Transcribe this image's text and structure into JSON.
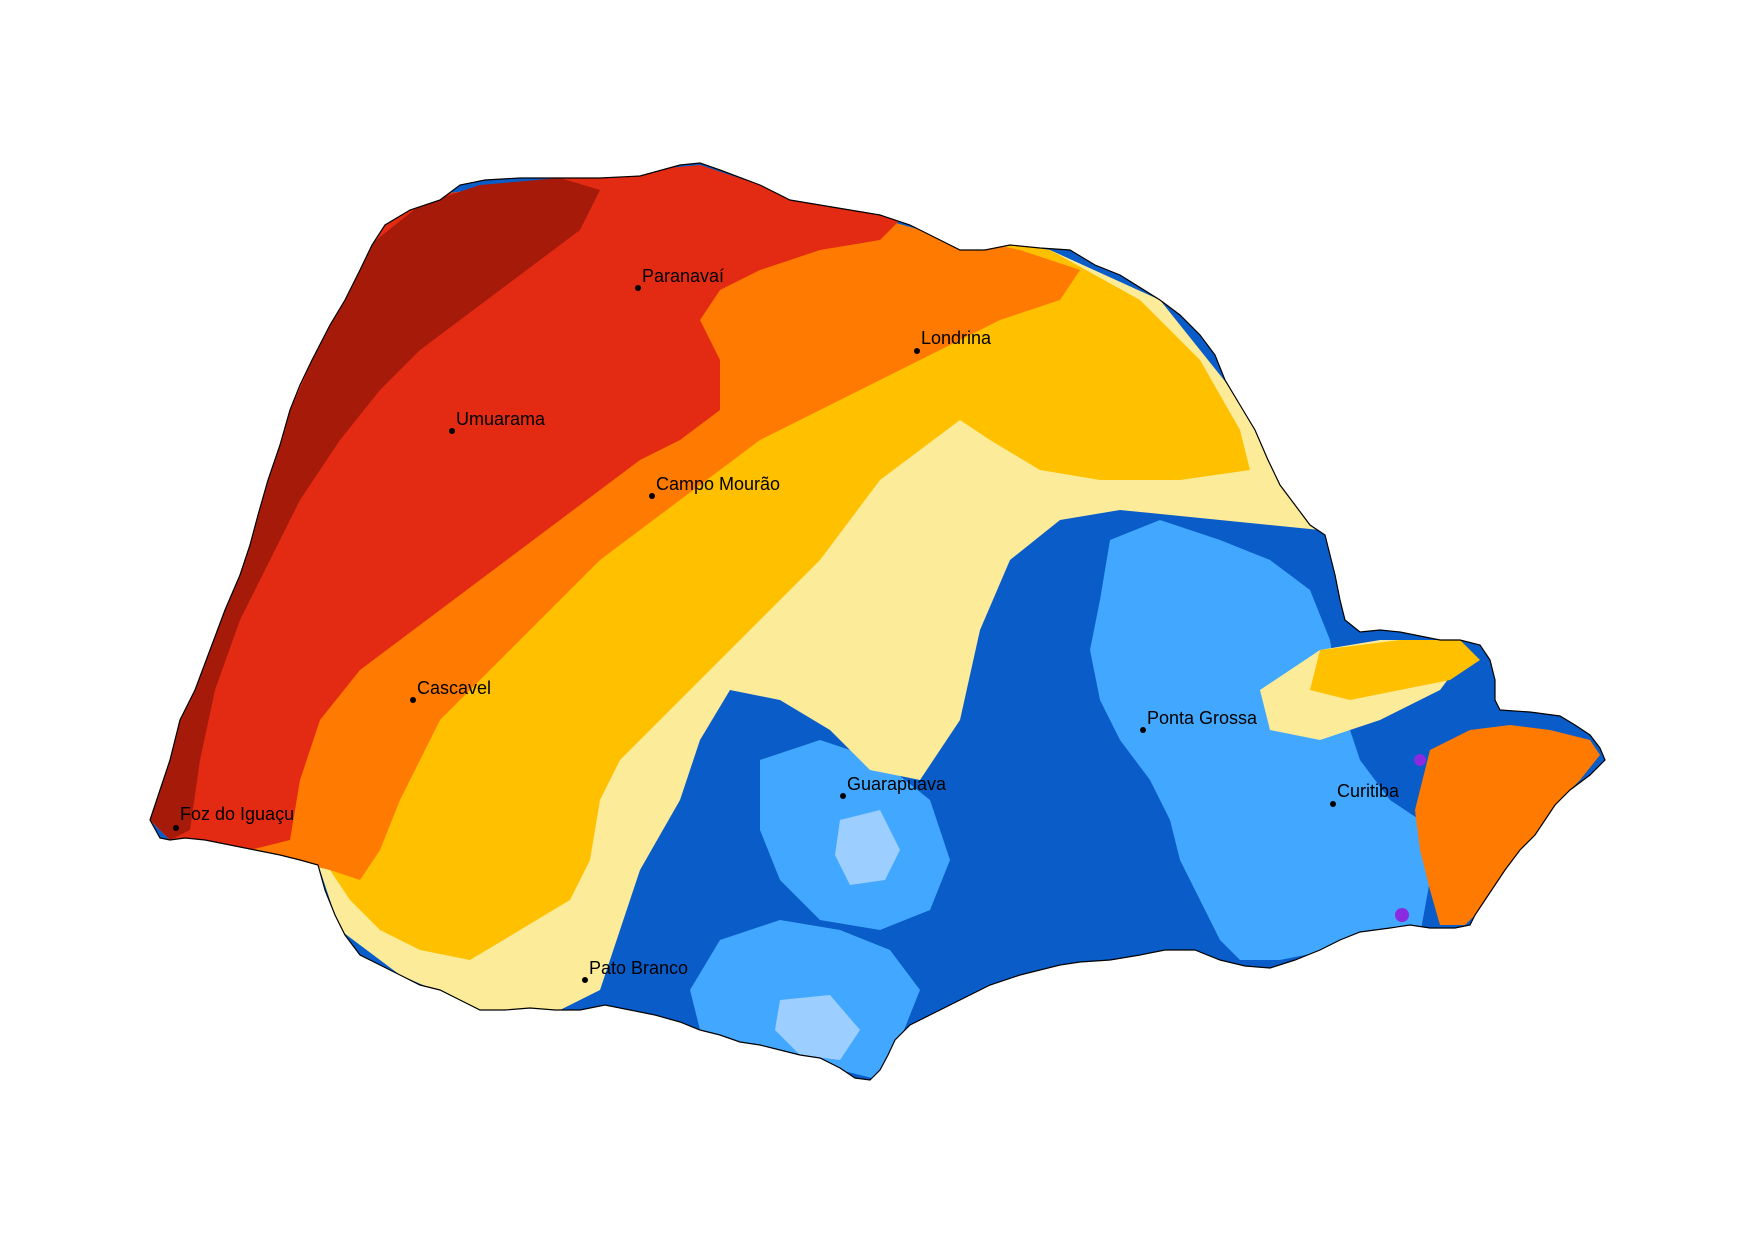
{
  "map": {
    "palette": {
      "z1_darkest": "#a61a0a",
      "z2_red": "#e32a12",
      "z3_orange": "#ff7a00",
      "z4_amber": "#ffc000",
      "z5_light_yellow": "#fcec9a",
      "z6_blue": "#0a5cc8",
      "z7_light_blue": "#42a8ff",
      "z8_pale_blue": "#9ccfff",
      "z9_violet": "#8a2be2",
      "outline": "#000000"
    },
    "cities": [
      {
        "id": "paranavai",
        "name": "Paranavaí"
      },
      {
        "id": "londrina",
        "name": "Londrina"
      },
      {
        "id": "umuarama",
        "name": "Umuarama"
      },
      {
        "id": "campo-mourao",
        "name": "Campo Mourão"
      },
      {
        "id": "cascavel",
        "name": "Cascavel"
      },
      {
        "id": "ponta-grossa",
        "name": "Ponta Grossa"
      },
      {
        "id": "guarapuava",
        "name": "Guarapuava"
      },
      {
        "id": "curitiba",
        "name": "Curitiba"
      },
      {
        "id": "foz-do-iguacu",
        "name": "Foz do Iguaçu"
      },
      {
        "id": "pato-branco",
        "name": "Pato Branco"
      }
    ]
  }
}
